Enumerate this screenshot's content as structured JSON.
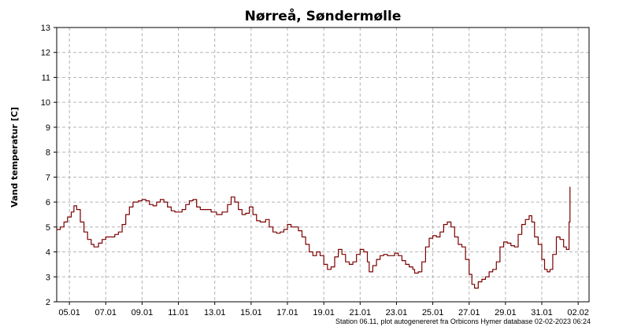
{
  "chart_data": {
    "type": "line",
    "title": "Nørreå, Søndermølle",
    "xlabel": "",
    "ylabel": "Vand temperatur [C]",
    "footer": "Station 06.11, plot autogenereret fra Orbicons Hymer database 02-02-2023 06:24",
    "grid": true,
    "legend": "none",
    "ylim": [
      2,
      13
    ],
    "yticks": [
      2,
      3,
      4,
      5,
      6,
      7,
      8,
      9,
      10,
      11,
      12,
      13
    ],
    "xlim_days": [
      4.3,
      33.6
    ],
    "xticks": [
      {
        "label": "05.01",
        "day": 5
      },
      {
        "label": "07.01",
        "day": 7
      },
      {
        "label": "09.01",
        "day": 9
      },
      {
        "label": "11.01",
        "day": 11
      },
      {
        "label": "13.01",
        "day": 13
      },
      {
        "label": "15.01",
        "day": 15
      },
      {
        "label": "17.01",
        "day": 17
      },
      {
        "label": "19.01",
        "day": 19
      },
      {
        "label": "21.01",
        "day": 21
      },
      {
        "label": "23.01",
        "day": 23
      },
      {
        "label": "25.01",
        "day": 25
      },
      {
        "label": "27.01",
        "day": 27
      },
      {
        "label": "29.01",
        "day": 29
      },
      {
        "label": "31.01",
        "day": 31
      },
      {
        "label": "02.02",
        "day": 33
      }
    ],
    "line_color": "#7b0000",
    "series": [
      {
        "points": [
          [
            4.3,
            4.9
          ],
          [
            4.5,
            5.0
          ],
          [
            4.7,
            5.2
          ],
          [
            4.9,
            5.4
          ],
          [
            5.1,
            5.6
          ],
          [
            5.25,
            5.85
          ],
          [
            5.4,
            5.7
          ],
          [
            5.6,
            5.2
          ],
          [
            5.8,
            4.8
          ],
          [
            6.0,
            4.5
          ],
          [
            6.2,
            4.3
          ],
          [
            6.35,
            4.2
          ],
          [
            6.6,
            4.35
          ],
          [
            6.8,
            4.5
          ],
          [
            7.0,
            4.6
          ],
          [
            7.2,
            4.6
          ],
          [
            7.5,
            4.7
          ],
          [
            7.7,
            4.8
          ],
          [
            7.9,
            5.1
          ],
          [
            8.1,
            5.5
          ],
          [
            8.3,
            5.8
          ],
          [
            8.5,
            6.0
          ],
          [
            8.8,
            6.05
          ],
          [
            9.0,
            6.1
          ],
          [
            9.2,
            6.05
          ],
          [
            9.4,
            5.9
          ],
          [
            9.6,
            5.85
          ],
          [
            9.8,
            6.0
          ],
          [
            10.0,
            6.1
          ],
          [
            10.2,
            6.0
          ],
          [
            10.4,
            5.8
          ],
          [
            10.6,
            5.65
          ],
          [
            10.8,
            5.6
          ],
          [
            11.0,
            5.6
          ],
          [
            11.2,
            5.7
          ],
          [
            11.4,
            5.9
          ],
          [
            11.6,
            6.05
          ],
          [
            11.8,
            6.1
          ],
          [
            12.0,
            5.8
          ],
          [
            12.2,
            5.7
          ],
          [
            12.5,
            5.7
          ],
          [
            12.8,
            5.6
          ],
          [
            13.1,
            5.5
          ],
          [
            13.4,
            5.6
          ],
          [
            13.7,
            5.9
          ],
          [
            13.9,
            6.2
          ],
          [
            14.1,
            6.0
          ],
          [
            14.3,
            5.7
          ],
          [
            14.5,
            5.5
          ],
          [
            14.7,
            5.55
          ],
          [
            14.9,
            5.8
          ],
          [
            15.1,
            5.5
          ],
          [
            15.3,
            5.25
          ],
          [
            15.5,
            5.2
          ],
          [
            15.8,
            5.3
          ],
          [
            16.0,
            5.0
          ],
          [
            16.2,
            4.8
          ],
          [
            16.4,
            4.75
          ],
          [
            16.6,
            4.8
          ],
          [
            16.8,
            4.9
          ],
          [
            17.0,
            5.1
          ],
          [
            17.2,
            5.0
          ],
          [
            17.4,
            5.0
          ],
          [
            17.6,
            4.85
          ],
          [
            17.8,
            4.6
          ],
          [
            18.0,
            4.3
          ],
          [
            18.2,
            4.0
          ],
          [
            18.4,
            3.85
          ],
          [
            18.6,
            4.0
          ],
          [
            18.8,
            3.85
          ],
          [
            19.0,
            3.5
          ],
          [
            19.2,
            3.3
          ],
          [
            19.4,
            3.4
          ],
          [
            19.6,
            3.8
          ],
          [
            19.8,
            4.1
          ],
          [
            20.0,
            3.9
          ],
          [
            20.2,
            3.6
          ],
          [
            20.4,
            3.5
          ],
          [
            20.6,
            3.6
          ],
          [
            20.8,
            3.9
          ],
          [
            21.0,
            4.1
          ],
          [
            21.2,
            4.0
          ],
          [
            21.4,
            3.6
          ],
          [
            21.5,
            3.2
          ],
          [
            21.7,
            3.45
          ],
          [
            21.9,
            3.7
          ],
          [
            22.1,
            3.85
          ],
          [
            22.3,
            3.9
          ],
          [
            22.5,
            3.85
          ],
          [
            22.7,
            3.85
          ],
          [
            22.9,
            3.95
          ],
          [
            23.1,
            3.85
          ],
          [
            23.3,
            3.65
          ],
          [
            23.5,
            3.5
          ],
          [
            23.7,
            3.4
          ],
          [
            23.9,
            3.3
          ],
          [
            24.0,
            3.15
          ],
          [
            24.2,
            3.2
          ],
          [
            24.4,
            3.6
          ],
          [
            24.6,
            4.2
          ],
          [
            24.8,
            4.55
          ],
          [
            25.0,
            4.65
          ],
          [
            25.2,
            4.6
          ],
          [
            25.4,
            4.8
          ],
          [
            25.6,
            5.1
          ],
          [
            25.8,
            5.2
          ],
          [
            26.0,
            5.0
          ],
          [
            26.2,
            4.6
          ],
          [
            26.4,
            4.3
          ],
          [
            26.6,
            4.2
          ],
          [
            26.8,
            3.7
          ],
          [
            27.0,
            3.1
          ],
          [
            27.15,
            2.7
          ],
          [
            27.3,
            2.55
          ],
          [
            27.5,
            2.8
          ],
          [
            27.7,
            2.9
          ],
          [
            27.9,
            3.0
          ],
          [
            28.1,
            3.2
          ],
          [
            28.3,
            3.3
          ],
          [
            28.5,
            3.6
          ],
          [
            28.7,
            4.2
          ],
          [
            28.9,
            4.4
          ],
          [
            29.1,
            4.35
          ],
          [
            29.3,
            4.25
          ],
          [
            29.5,
            4.2
          ],
          [
            29.7,
            4.7
          ],
          [
            29.9,
            5.1
          ],
          [
            30.1,
            5.3
          ],
          [
            30.3,
            5.45
          ],
          [
            30.45,
            5.2
          ],
          [
            30.6,
            4.6
          ],
          [
            30.8,
            4.3
          ],
          [
            31.0,
            3.7
          ],
          [
            31.15,
            3.3
          ],
          [
            31.3,
            3.2
          ],
          [
            31.45,
            3.3
          ],
          [
            31.6,
            3.9
          ],
          [
            31.8,
            4.6
          ],
          [
            32.0,
            4.5
          ],
          [
            32.2,
            4.2
          ],
          [
            32.35,
            4.1
          ],
          [
            32.45,
            4.1
          ],
          [
            32.5,
            5.2
          ],
          [
            32.55,
            6.6
          ],
          [
            32.57,
            6.6
          ]
        ]
      }
    ]
  }
}
